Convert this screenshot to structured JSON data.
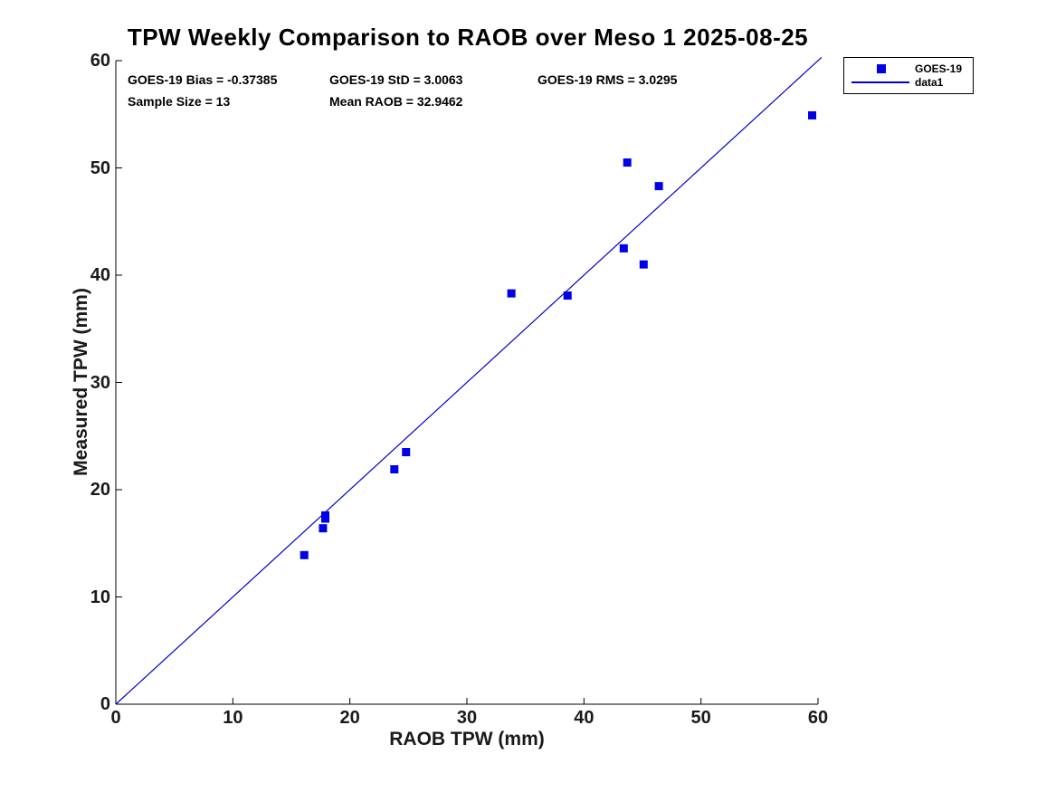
{
  "title": "TPW Weekly Comparison to RAOB over Meso 1 2025-08-25",
  "stats": {
    "bias": "GOES-19 Bias = -0.37385",
    "std": "GOES-19 StD = 3.0063",
    "rms": "GOES-19 RMS = 3.0295",
    "sample_size": "Sample Size = 13",
    "mean_raob": "Mean RAOB = 32.9462"
  },
  "legend": {
    "marker_label": "GOES-19",
    "line_label": "data1",
    "position": "outside-top-right"
  },
  "colors": {
    "marker": "#0000e6",
    "line": "#0000cd",
    "axis": "#000000",
    "text": "#000000",
    "background": "#ffffff"
  },
  "chart_data": {
    "type": "scatter",
    "title": "TPW Weekly Comparison to RAOB over Meso 1 2025-08-25",
    "xlabel": "RAOB TPW (mm)",
    "ylabel": "Measured TPW (mm)",
    "xlim": [
      0,
      60
    ],
    "ylim": [
      0,
      60
    ],
    "xticks": [
      0,
      10,
      20,
      30,
      40,
      50,
      60
    ],
    "yticks": [
      0,
      10,
      20,
      30,
      40,
      50,
      60
    ],
    "grid": false,
    "annotations": [
      "GOES-19 Bias = -0.37385",
      "GOES-19 StD = 3.0063",
      "GOES-19 RMS = 3.0295",
      "Sample Size = 13",
      "Mean RAOB = 32.9462"
    ],
    "series": [
      {
        "name": "GOES-19",
        "type": "scatter",
        "marker": "square",
        "color": "#0000e6",
        "points": [
          [
            16.1,
            13.9
          ],
          [
            17.7,
            16.4
          ],
          [
            17.9,
            17.3
          ],
          [
            17.9,
            17.6
          ],
          [
            23.8,
            21.9
          ],
          [
            24.8,
            23.5
          ],
          [
            33.8,
            38.3
          ],
          [
            38.6,
            38.1
          ],
          [
            43.4,
            42.5
          ],
          [
            43.7,
            50.5
          ],
          [
            45.1,
            41.0
          ],
          [
            46.4,
            48.3
          ],
          [
            59.5,
            54.9
          ]
        ]
      },
      {
        "name": "data1",
        "type": "line",
        "color": "#0000cd",
        "x": [
          0,
          60.3
        ],
        "y": [
          0,
          60.3
        ]
      }
    ]
  }
}
